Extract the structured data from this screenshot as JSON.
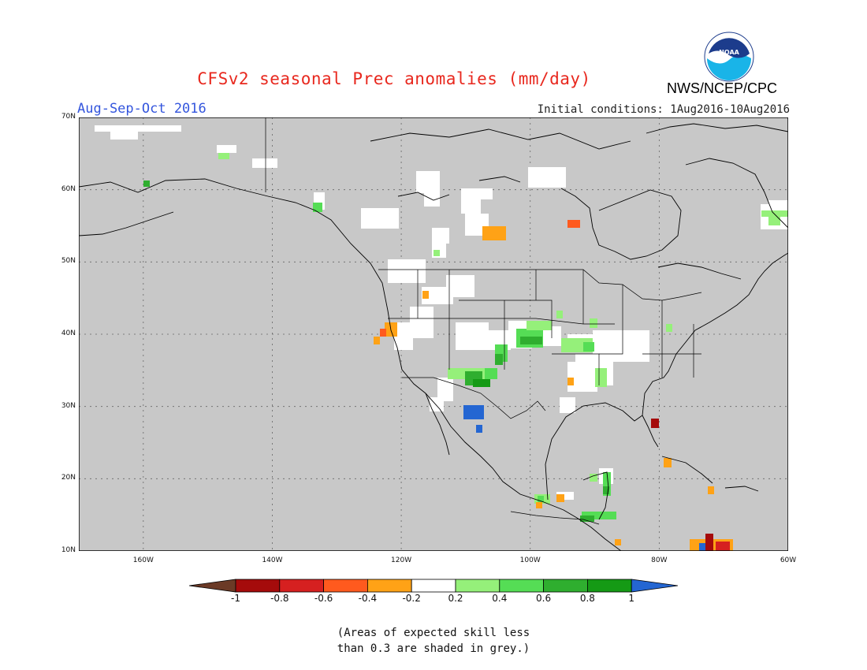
{
  "header": {
    "title": "CFSv2 seasonal Prec anomalies (mm/day)",
    "period": "Aug-Sep-Oct 2016",
    "initial_conditions": "Initial conditions: 1Aug2016-10Aug2016",
    "agency": "NWS/NCEP/CPC",
    "logo_text": "NOAA"
  },
  "map": {
    "lat_labels": [
      "70N",
      "60N",
      "50N",
      "40N",
      "30N",
      "20N",
      "10N"
    ],
    "lon_labels": [
      "160W",
      "140W",
      "120W",
      "100W",
      "80W",
      "60W"
    ],
    "background_color": "#c8c8c8"
  },
  "colorbar": {
    "ticks": [
      "-1",
      "-0.8",
      "-0.6",
      "-0.4",
      "-0.2",
      "0.2",
      "0.4",
      "0.6",
      "0.8",
      "1"
    ],
    "colors": [
      "#6b3a26",
      "#a50b0b",
      "#d62020",
      "#ff5a1e",
      "#ffa216",
      "#ffffff",
      "#95f07a",
      "#55dd55",
      "#2fae2f",
      "#159a15",
      "#2466d2"
    ]
  },
  "footnote": {
    "line1": "(Areas of expected skill less",
    "line2": "than 0.3 are shaded in grey.)"
  }
}
